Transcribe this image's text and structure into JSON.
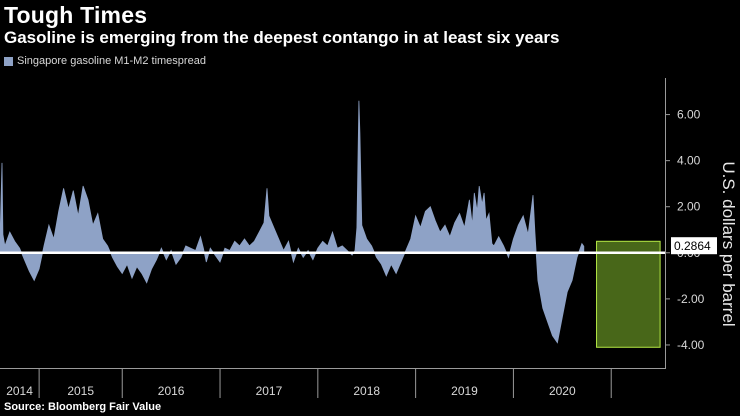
{
  "header": {
    "title": "Tough Times",
    "subtitle": "Gasoline is emerging from the deepest contango in at least six years"
  },
  "legend": {
    "label": "Singapore gasoline M1-M2 timespread",
    "swatch_color": "#8ea2c6"
  },
  "footer": {
    "source": "Source: Bloomberg Fair Value"
  },
  "colors": {
    "series": "#8ea2c6",
    "highlight_fill": "#84bb2e",
    "highlight_border": "#b6ea45",
    "background": "#000000"
  },
  "chart_data": {
    "type": "area",
    "title": "Tough Times",
    "subtitle": "Gasoline is emerging from the deepest contango in at least six years",
    "ylabel": "U.S. dollars per barrel",
    "xlabel": "",
    "ylim": [
      -5,
      7.5
    ],
    "xlim": [
      2013.75,
      2020.55
    ],
    "yticks": [
      -4,
      -2,
      0,
      2,
      4,
      6
    ],
    "ytick_labels": [
      "-4.00",
      "-2.00",
      "0.00",
      "2.00",
      "4.00",
      "6.00"
    ],
    "x_ticks": [
      {
        "label": "2014",
        "center": 2014.0
      },
      {
        "label": "2015",
        "center": 2014.5
      },
      {
        "label": "2016",
        "center": 2015.5
      },
      {
        "label": "2017",
        "center": 2016.5
      },
      {
        "label": "2018",
        "center": 2017.5
      },
      {
        "label": "2019",
        "center": 2018.5
      },
      {
        "label": "2020",
        "center": 2019.5
      }
    ],
    "x_year_bounds": [
      2014.15,
      2015.0,
      2016.0,
      2017.0,
      2018.0,
      2019.0,
      2020.0
    ],
    "last_value": 0.2864,
    "last_value_label": "0.2864",
    "highlight": {
      "x_start": 2019.85,
      "x_end": 2020.5,
      "y_low": -4.1,
      "y_high": 0.5
    },
    "series": [
      {
        "name": "Singapore gasoline M1-M2 timespread",
        "points": [
          [
            2013.75,
            0.6
          ],
          [
            2013.77,
            3.9
          ],
          [
            2013.78,
            0.8
          ],
          [
            2013.8,
            0.3
          ],
          [
            2013.85,
            0.9
          ],
          [
            2013.9,
            0.5
          ],
          [
            2013.95,
            0.2
          ],
          [
            2014.0,
            -0.3
          ],
          [
            2014.05,
            -0.8
          ],
          [
            2014.1,
            -1.2
          ],
          [
            2014.15,
            -0.7
          ],
          [
            2014.2,
            0.3
          ],
          [
            2014.25,
            1.2
          ],
          [
            2014.3,
            0.6
          ],
          [
            2014.35,
            1.8
          ],
          [
            2014.4,
            2.8
          ],
          [
            2014.45,
            1.9
          ],
          [
            2014.5,
            2.7
          ],
          [
            2014.55,
            1.6
          ],
          [
            2014.6,
            2.9
          ],
          [
            2014.65,
            2.3
          ],
          [
            2014.7,
            1.2
          ],
          [
            2014.75,
            1.7
          ],
          [
            2014.8,
            0.6
          ],
          [
            2014.85,
            0.3
          ],
          [
            2014.9,
            -0.2
          ],
          [
            2014.95,
            -0.6
          ],
          [
            2015.0,
            -0.9
          ],
          [
            2015.05,
            -0.5
          ],
          [
            2015.1,
            -1.1
          ],
          [
            2015.15,
            -0.6
          ],
          [
            2015.2,
            -0.9
          ],
          [
            2015.25,
            -1.3
          ],
          [
            2015.3,
            -0.7
          ],
          [
            2015.35,
            -0.3
          ],
          [
            2015.4,
            0.2
          ],
          [
            2015.45,
            -0.3
          ],
          [
            2015.5,
            0.1
          ],
          [
            2015.55,
            -0.5
          ],
          [
            2015.6,
            -0.2
          ],
          [
            2015.65,
            0.3
          ],
          [
            2015.7,
            0.2
          ],
          [
            2015.75,
            0.1
          ],
          [
            2015.8,
            0.7
          ],
          [
            2015.83,
            0.2
          ],
          [
            2015.86,
            -0.4
          ],
          [
            2015.9,
            0.2
          ],
          [
            2015.95,
            -0.1
          ],
          [
            2016.0,
            -0.4
          ],
          [
            2016.05,
            0.2
          ],
          [
            2016.1,
            0.1
          ],
          [
            2016.15,
            0.5
          ],
          [
            2016.2,
            0.3
          ],
          [
            2016.25,
            0.6
          ],
          [
            2016.3,
            0.3
          ],
          [
            2016.35,
            0.5
          ],
          [
            2016.4,
            0.9
          ],
          [
            2016.45,
            1.3
          ],
          [
            2016.48,
            2.8
          ],
          [
            2016.5,
            1.6
          ],
          [
            2016.55,
            1.1
          ],
          [
            2016.6,
            0.6
          ],
          [
            2016.65,
            0.1
          ],
          [
            2016.7,
            0.5
          ],
          [
            2016.75,
            -0.4
          ],
          [
            2016.8,
            0.2
          ],
          [
            2016.85,
            -0.2
          ],
          [
            2016.9,
            0.1
          ],
          [
            2016.95,
            -0.3
          ],
          [
            2017.0,
            0.2
          ],
          [
            2017.05,
            0.5
          ],
          [
            2017.1,
            0.3
          ],
          [
            2017.15,
            0.9
          ],
          [
            2017.2,
            0.2
          ],
          [
            2017.25,
            0.3
          ],
          [
            2017.3,
            0.1
          ],
          [
            2017.35,
            -0.1
          ],
          [
            2017.38,
            0.1
          ],
          [
            2017.4,
            1.1
          ],
          [
            2017.42,
            6.6
          ],
          [
            2017.43,
            5.2
          ],
          [
            2017.45,
            1.2
          ],
          [
            2017.5,
            0.6
          ],
          [
            2017.55,
            0.3
          ],
          [
            2017.6,
            -0.2
          ],
          [
            2017.65,
            -0.5
          ],
          [
            2017.7,
            -1.0
          ],
          [
            2017.75,
            -0.5
          ],
          [
            2017.8,
            -0.9
          ],
          [
            2017.85,
            -0.4
          ],
          [
            2017.9,
            0.1
          ],
          [
            2017.95,
            0.6
          ],
          [
            2018.0,
            1.6
          ],
          [
            2018.05,
            1.1
          ],
          [
            2018.1,
            1.8
          ],
          [
            2018.15,
            2.0
          ],
          [
            2018.2,
            1.4
          ],
          [
            2018.25,
            0.9
          ],
          [
            2018.3,
            1.2
          ],
          [
            2018.35,
            0.7
          ],
          [
            2018.4,
            1.3
          ],
          [
            2018.45,
            1.7
          ],
          [
            2018.5,
            1.1
          ],
          [
            2018.55,
            2.3
          ],
          [
            2018.58,
            1.2
          ],
          [
            2018.6,
            2.6
          ],
          [
            2018.63,
            1.8
          ],
          [
            2018.65,
            2.9
          ],
          [
            2018.68,
            2.1
          ],
          [
            2018.7,
            2.6
          ],
          [
            2018.72,
            1.4
          ],
          [
            2018.75,
            1.7
          ],
          [
            2018.78,
            0.4
          ],
          [
            2018.8,
            0.3
          ],
          [
            2018.85,
            0.7
          ],
          [
            2018.9,
            0.3
          ],
          [
            2018.95,
            -0.2
          ],
          [
            2019.0,
            0.6
          ],
          [
            2019.05,
            1.2
          ],
          [
            2019.1,
            1.6
          ],
          [
            2019.15,
            0.8
          ],
          [
            2019.2,
            2.5
          ],
          [
            2019.22,
            0.9
          ],
          [
            2019.25,
            -1.2
          ],
          [
            2019.3,
            -2.4
          ],
          [
            2019.35,
            -3.0
          ],
          [
            2019.4,
            -3.6
          ],
          [
            2019.45,
            -3.9
          ],
          [
            2019.5,
            -2.8
          ],
          [
            2019.55,
            -1.7
          ],
          [
            2019.6,
            -1.2
          ],
          [
            2019.65,
            -0.2
          ],
          [
            2019.7,
            0.4
          ],
          [
            2019.72,
            0.2864
          ]
        ]
      }
    ]
  }
}
